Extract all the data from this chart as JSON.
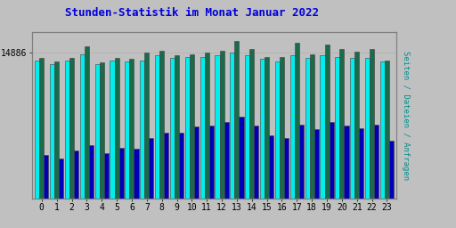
{
  "title": "Stunden-Statistik im Monat Januar 2022",
  "title_color": "#0000dd",
  "title_fontsize": 9,
  "ylabel_right": "Seiten / Dateien / Anfragen",
  "ylabel_right_color": "#009090",
  "ytick_label": "14886",
  "background_color": "#c0c0c0",
  "plot_bg_color": "#c0c0c0",
  "hours": [
    0,
    1,
    2,
    3,
    4,
    5,
    6,
    7,
    8,
    9,
    10,
    11,
    12,
    13,
    14,
    15,
    16,
    17,
    18,
    19,
    20,
    21,
    22,
    23
  ],
  "seiten": [
    14820,
    14790,
    14820,
    14870,
    14790,
    14820,
    14810,
    14820,
    14860,
    14840,
    14850,
    14850,
    14860,
    14886,
    14860,
    14830,
    14810,
    14860,
    14840,
    14860,
    14850,
    14840,
    14840,
    14810
  ],
  "dateien": [
    14840,
    14810,
    14840,
    14930,
    14800,
    14840,
    14830,
    14880,
    14900,
    14860,
    14870,
    14880,
    14900,
    14980,
    14910,
    14850,
    14850,
    14960,
    14870,
    14950,
    14910,
    14890,
    14910,
    14820
  ],
  "anfragen": [
    14050,
    14020,
    14090,
    14130,
    14070,
    14110,
    14100,
    14190,
    14230,
    14230,
    14280,
    14290,
    14320,
    14360,
    14290,
    14210,
    14190,
    14300,
    14260,
    14320,
    14290,
    14270,
    14300,
    14170
  ],
  "color_seiten": "#00eeee",
  "color_dateien": "#1a6b4a",
  "color_anfragen": "#0000bb",
  "bar_edge_color": "#404040",
  "bar_width": 0.3,
  "ylim_min": 13700,
  "ylim_max": 15050,
  "ytick_val": 14886,
  "grid_color": "#b0b0b0"
}
